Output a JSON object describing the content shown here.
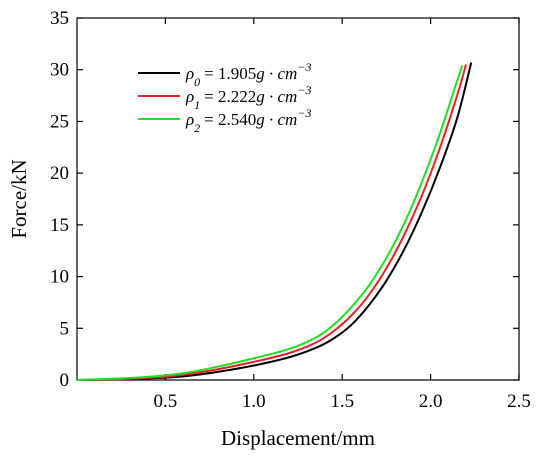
{
  "chart_data": {
    "type": "line",
    "title": "",
    "xlabel": "Displacement/mm",
    "ylabel": "Force/kN",
    "xlim": [
      0,
      2.5
    ],
    "ylim": [
      0,
      35
    ],
    "xticks": [
      0.5,
      1.0,
      1.5,
      2.0,
      2.5
    ],
    "xtick_labels": [
      "0.5",
      "1.0",
      "1.5",
      "2.0",
      "2.5"
    ],
    "yticks": [
      0,
      5,
      10,
      15,
      20,
      25,
      30,
      35
    ],
    "ytick_labels": [
      "0",
      "5",
      "10",
      "15",
      "20",
      "25",
      "30",
      "35"
    ],
    "grid": false,
    "legend_position": "top-left",
    "series": [
      {
        "name": "ρ0 = 1.905g · cm−3",
        "legend": {
          "symbol": "ρ",
          "sub": "0",
          "value": "= 1.905",
          "unit": "g · cm",
          "sup": "−3"
        },
        "color": "#000000",
        "x": [
          0.0,
          0.2,
          0.4,
          0.6,
          0.8,
          1.0,
          1.2,
          1.35,
          1.45,
          1.55,
          1.65,
          1.75,
          1.85,
          1.95,
          2.05,
          2.15,
          2.23
        ],
        "y": [
          0.0,
          0.05,
          0.15,
          0.35,
          0.8,
          1.4,
          2.2,
          3.1,
          4.0,
          5.3,
          7.2,
          9.6,
          12.6,
          16.2,
          20.4,
          25.3,
          30.7
        ]
      },
      {
        "name": "ρ1 = 2.222g · cm−3",
        "legend": {
          "symbol": "ρ",
          "sub": "1",
          "value": "= 2.222",
          "unit": "g · cm",
          "sup": "−3"
        },
        "color": "#e8202a",
        "x": [
          0.0,
          0.2,
          0.4,
          0.6,
          0.8,
          1.0,
          1.2,
          1.35,
          1.45,
          1.55,
          1.65,
          1.75,
          1.85,
          1.95,
          2.05,
          2.15,
          2.2
        ],
        "y": [
          0.0,
          0.08,
          0.2,
          0.5,
          1.05,
          1.75,
          2.6,
          3.6,
          4.7,
          6.2,
          8.2,
          10.8,
          14.0,
          17.8,
          22.3,
          27.5,
          30.5
        ]
      },
      {
        "name": "ρ2 = 2.540g · cm−3",
        "legend": {
          "symbol": "ρ",
          "sub": "2",
          "value": "= 2.540",
          "unit": "g · cm",
          "sup": "−3"
        },
        "color": "#22dd22",
        "x": [
          0.0,
          0.2,
          0.4,
          0.6,
          0.8,
          1.0,
          1.2,
          1.35,
          1.45,
          1.55,
          1.65,
          1.75,
          1.85,
          1.95,
          2.05,
          2.15,
          2.18
        ],
        "y": [
          0.0,
          0.12,
          0.3,
          0.65,
          1.3,
          2.1,
          3.0,
          4.1,
          5.3,
          7.0,
          9.1,
          11.8,
          15.1,
          19.1,
          23.7,
          28.9,
          30.4
        ]
      }
    ]
  }
}
